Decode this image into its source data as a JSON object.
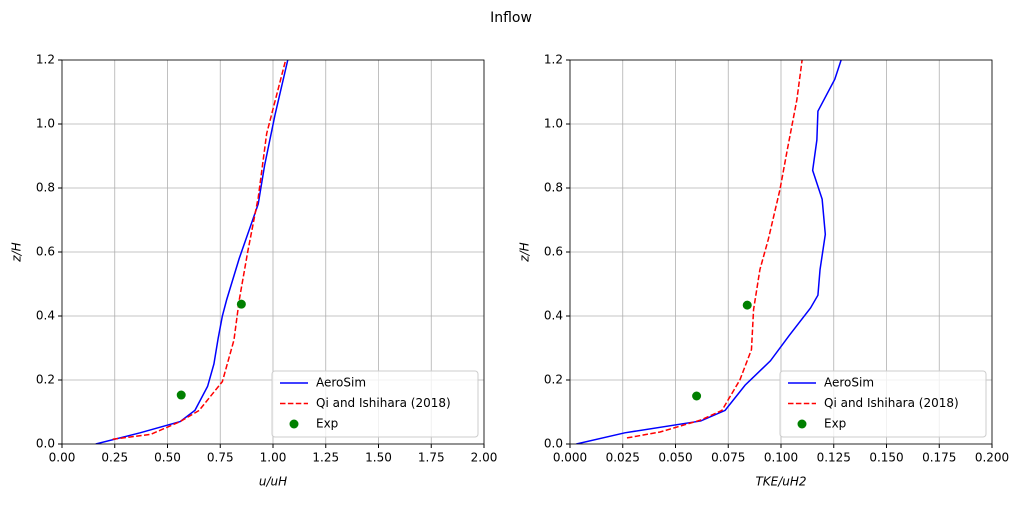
{
  "title": "Inflow",
  "chart_data": [
    {
      "type": "line",
      "xlabel": "u/uH",
      "ylabel": "z/H",
      "xlim": [
        0,
        2
      ],
      "ylim": [
        0,
        1.2
      ],
      "xticks": [
        {
          "value": 0,
          "label": "0.00"
        },
        0.25,
        {
          "value": 0.5,
          "label": "0.50"
        },
        0.75,
        {
          "value": 1,
          "label": "1.00"
        },
        1.25,
        {
          "value": 1.5,
          "label": "1.50"
        },
        1.75,
        {
          "value": 2,
          "label": "2.00"
        }
      ],
      "yticks": [
        {
          "value": 0,
          "label": "0.0"
        },
        0.2,
        0.4,
        0.6,
        0.8,
        {
          "value": 1,
          "label": "1.0"
        },
        1.2
      ],
      "grid": true,
      "legend": "lower right",
      "series": [
        {
          "name": "AeroSim",
          "color": "#0000ff",
          "linestyle": "solid",
          "x": [
            0.16,
            0.37,
            0.56,
            0.63,
            0.69,
            0.72,
            0.74,
            0.76,
            0.78,
            0.84,
            0.93,
            0.96,
            1.01,
            1.07
          ],
          "values": [
            0,
            0.035,
            0.07,
            0.105,
            0.18,
            0.25,
            0.33,
            0.4,
            0.45,
            0.58,
            0.75,
            0.87,
            1.03,
            1.2
          ]
        },
        {
          "name": "Qi and Ishihara (2018)",
          "color": "#ff0000",
          "linestyle": "dashed",
          "x": [
            0.24,
            0.42,
            0.56,
            0.65,
            0.76,
            0.815,
            0.84,
            0.88,
            0.93,
            0.97,
            1.06
          ],
          "values": [
            0.015,
            0.03,
            0.07,
            0.105,
            0.195,
            0.325,
            0.45,
            0.6,
            0.77,
            0.97,
            1.2
          ]
        },
        {
          "name": "Exp",
          "color": "#008000",
          "linestyle": "none",
          "marker": "o",
          "x": [
            0.565,
            0.85
          ],
          "values": [
            0.153,
            0.437
          ]
        }
      ]
    },
    {
      "type": "line",
      "xlabel": "TKE/uH2",
      "ylabel": "z/H",
      "xlim": [
        0,
        0.2
      ],
      "ylim": [
        0,
        1.2
      ],
      "xticks": [
        {
          "value": 0,
          "label": "0.000"
        },
        0.025,
        {
          "value": 0.05,
          "label": "0.050"
        },
        0.075,
        {
          "value": 0.1,
          "label": "0.100"
        },
        0.125,
        {
          "value": 0.15,
          "label": "0.150"
        },
        0.175,
        {
          "value": 0.2,
          "label": "0.200"
        }
      ],
      "yticks": [
        {
          "value": 0,
          "label": "0.0"
        },
        0.2,
        0.4,
        0.6,
        0.8,
        {
          "value": 1,
          "label": "1.0"
        },
        1.2
      ],
      "grid": true,
      "legend": "lower right",
      "series": [
        {
          "name": "AeroSim",
          "color": "#0000ff",
          "linestyle": "solid",
          "x": [
            0.003,
            0.026,
            0.062,
            0.0735,
            0.083,
            0.095,
            0.104,
            0.114,
            0.1175,
            0.1185,
            0.121,
            0.1195,
            0.115,
            0.117,
            0.1175,
            0.1255,
            0.1285
          ],
          "values": [
            0,
            0.035,
            0.072,
            0.105,
            0.184,
            0.26,
            0.34,
            0.425,
            0.465,
            0.545,
            0.655,
            0.765,
            0.855,
            0.95,
            1.04,
            1.14,
            1.2
          ]
        },
        {
          "name": "Qi and Ishihara (2018)",
          "color": "#ff0000",
          "linestyle": "dashed",
          "x": [
            0.027,
            0.0427,
            0.062,
            0.072,
            0.0805,
            0.086,
            0.087,
            0.09,
            0.094,
            0.0995,
            0.103,
            0.1075,
            0.11
          ],
          "values": [
            0.019,
            0.0375,
            0.075,
            0.105,
            0.2,
            0.295,
            0.42,
            0.545,
            0.64,
            0.795,
            0.92,
            1.075,
            1.2
          ]
        },
        {
          "name": "Exp",
          "color": "#008000",
          "linestyle": "none",
          "marker": "o",
          "x": [
            0.06,
            0.084
          ],
          "values": [
            0.15,
            0.434
          ]
        }
      ]
    }
  ]
}
